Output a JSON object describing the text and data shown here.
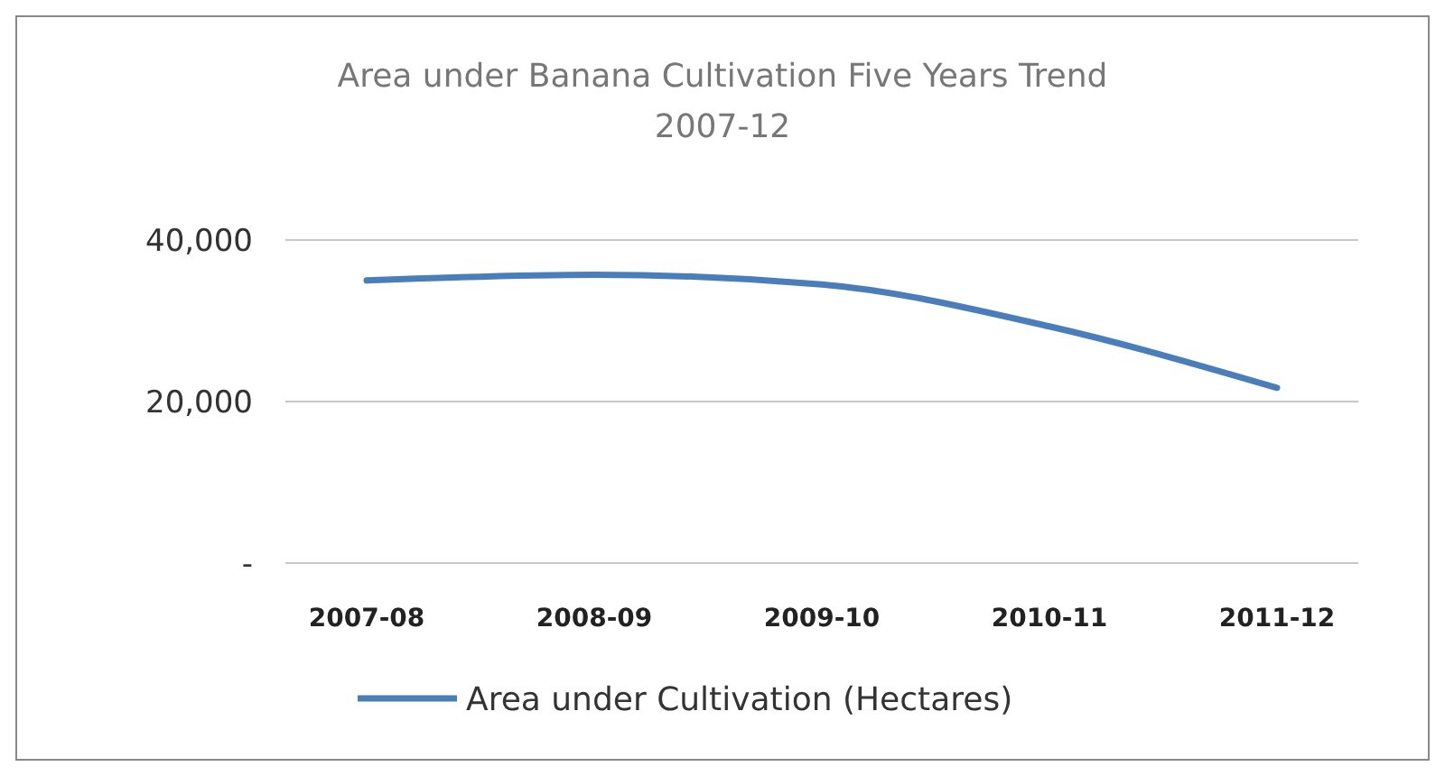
{
  "chart_data": {
    "type": "line",
    "title": "Area under Banana Cultivation Five Years Trend",
    "subtitle": "2007-12",
    "categories": [
      "2007-08",
      "2008-09",
      "2009-10",
      "2010-11",
      "2011-12"
    ],
    "series": [
      {
        "name": "Area under Cultivation (Hectares)",
        "color": "#4a7ebb",
        "values": [
          35000,
          35700,
          34500,
          29300,
          21700
        ]
      }
    ],
    "ylim": [
      0,
      40000
    ],
    "yticks": [
      {
        "value": 0,
        "label": "-"
      },
      {
        "value": 20000,
        "label": "20,000"
      },
      {
        "value": 40000,
        "label": "40,000"
      }
    ],
    "grid": "y",
    "legend": "bottom",
    "marker": "none",
    "line_style": "solid"
  }
}
